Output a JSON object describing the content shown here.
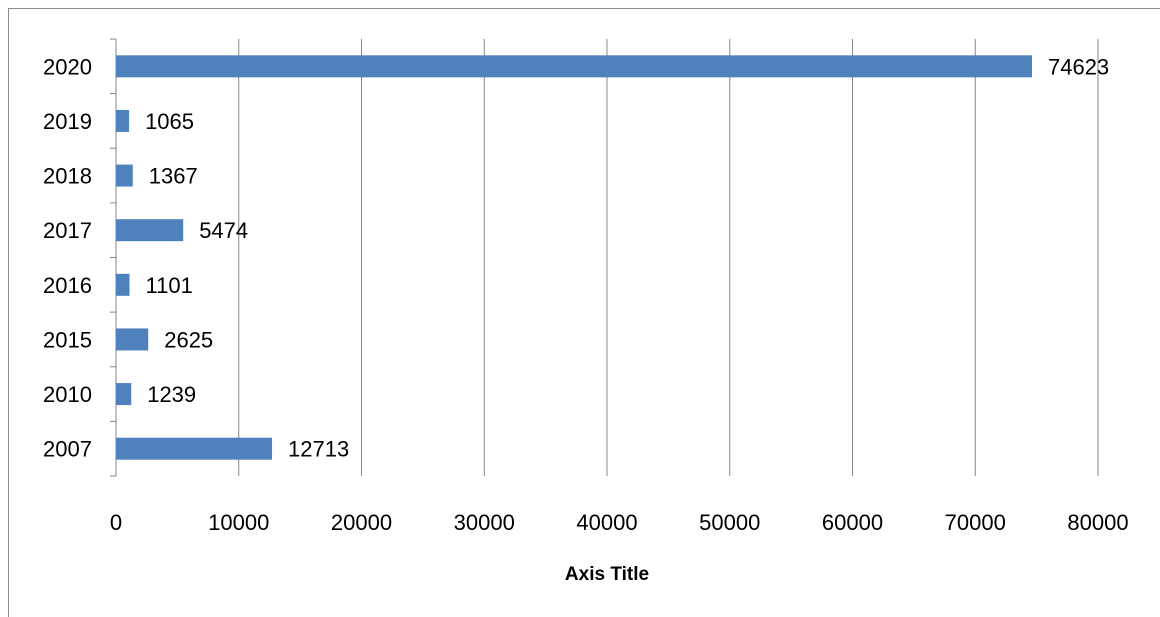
{
  "chart_data": {
    "type": "bar",
    "orientation": "horizontal",
    "categories": [
      "2020",
      "2019",
      "2018",
      "2017",
      "2016",
      "2015",
      "2010",
      "2007"
    ],
    "values": [
      74623,
      1065,
      1367,
      5474,
      1101,
      2625,
      1239,
      12713
    ],
    "data_labels": [
      "74623",
      "1065",
      "1367",
      "5474",
      "1101",
      "2625",
      "1239",
      "12713"
    ],
    "x_ticks": [
      "0",
      "10000",
      "20000",
      "30000",
      "40000",
      "50000",
      "60000",
      "70000",
      "80000"
    ],
    "xlim": [
      0,
      80000
    ],
    "xlabel": "Axis Title",
    "grid": "vertical",
    "legend": "none",
    "colors": {
      "bar": "#4f81bd",
      "grid": "#868686",
      "axis": "#868686",
      "frame": "#8c8c8c"
    }
  }
}
